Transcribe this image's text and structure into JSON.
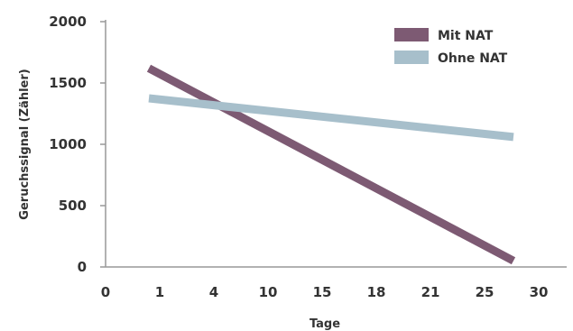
{
  "chart_data": {
    "type": "line",
    "xlabel": "Tage",
    "ylabel": "Geruchssignal (Zähler)",
    "x_ticks": [
      "0",
      "1",
      "4",
      "10",
      "15",
      "18",
      "21",
      "25",
      "30"
    ],
    "y_ticks": [
      "0",
      "500",
      "1000",
      "1500",
      "2000"
    ],
    "ylim": [
      0,
      2000
    ],
    "grid": false,
    "legend_position": "top-right",
    "series": [
      {
        "name": "Mit NAT",
        "color": "#7d5a73",
        "start": {
          "x": "1",
          "y": 1620
        },
        "end": {
          "x": "30",
          "y": 50
        }
      },
      {
        "name": "Ohne NAT",
        "color": "#a7bfcb",
        "start": {
          "x": "1",
          "y": 1375
        },
        "end": {
          "x": "30",
          "y": 1060
        }
      }
    ]
  }
}
